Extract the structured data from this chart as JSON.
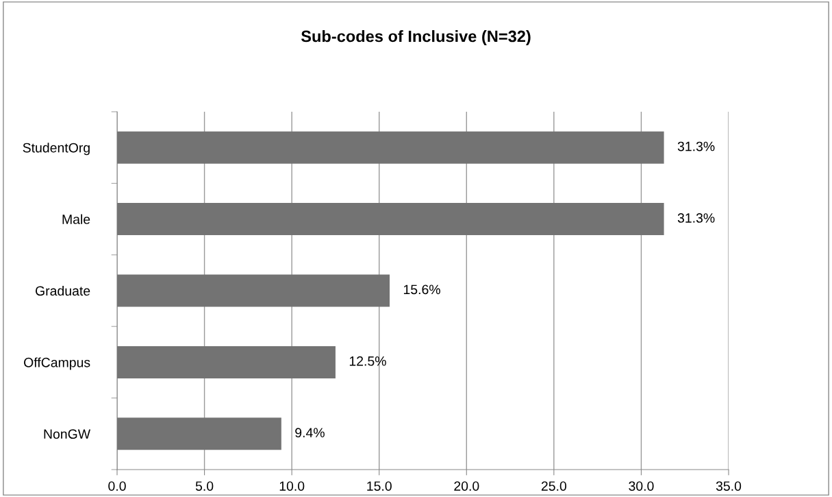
{
  "chart_data": {
    "type": "bar",
    "orientation": "horizontal",
    "title": "Sub-codes of Inclusive (N=32)",
    "categories": [
      "StudentOrg",
      "Male",
      "Graduate",
      "OffCampus",
      "NonGW"
    ],
    "values": [
      31.3,
      31.3,
      15.6,
      12.5,
      9.4
    ],
    "value_labels": [
      "31.3%",
      "31.3%",
      "15.6%",
      "12.5%",
      "9.4%"
    ],
    "color": "#737373",
    "xlim": [
      0,
      35
    ],
    "xticks": [
      {
        "value": 0,
        "label": "0.0"
      },
      {
        "value": 5,
        "label": "5.0"
      },
      {
        "value": 10,
        "label": "10.0"
      },
      {
        "value": 15,
        "label": "15.0"
      },
      {
        "value": 20,
        "label": "20.0"
      },
      {
        "value": 25,
        "label": "25.0"
      },
      {
        "value": 30,
        "label": "30.0"
      },
      {
        "value": 35,
        "label": "35.0"
      }
    ],
    "grid": "x",
    "legend": false
  }
}
